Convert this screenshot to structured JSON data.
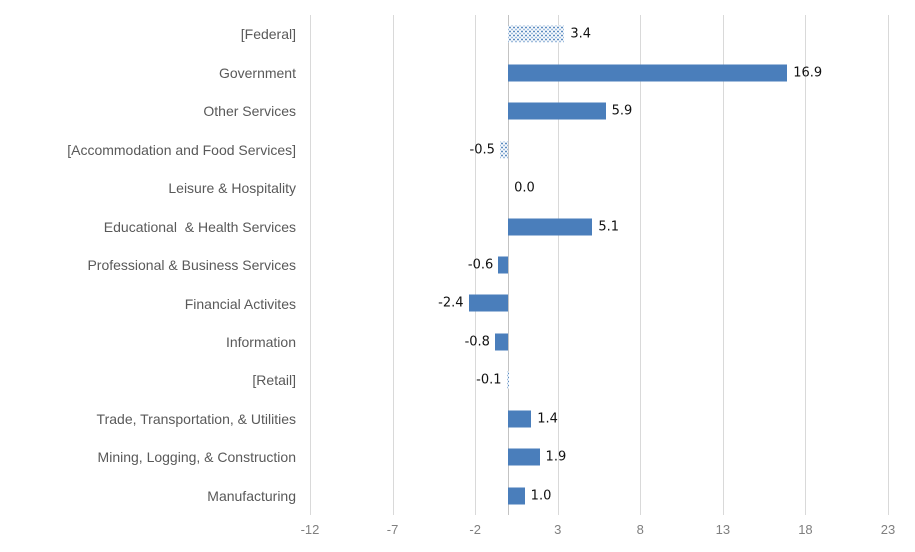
{
  "chart_data": {
    "type": "bar",
    "orientation": "horizontal",
    "categories": [
      "[Federal]",
      "Government",
      "Other Services",
      "[Accommodation and Food Services]",
      "Leisure & Hospitality",
      "Educational  & Health Services",
      "Professional & Business Services",
      "Financial Activites",
      "Information",
      "[Retail]",
      "Trade, Transportation, & Utilities",
      "Mining, Logging, & Construction",
      "Manufacturing"
    ],
    "values": [
      3.4,
      16.9,
      5.9,
      -0.5,
      0.0,
      5.1,
      -0.6,
      -2.4,
      -0.8,
      -0.1,
      1.4,
      1.9,
      1.0
    ],
    "value_labels": [
      "3.4",
      "16.9",
      "5.9",
      "-0.5",
      "0.0",
      "5.1",
      "-0.6",
      "-2.4",
      "-0.8",
      "-0.1",
      "1.4",
      "1.9",
      "1.0"
    ],
    "fill_styles": [
      "dotted",
      "solid",
      "solid",
      "dotted",
      "solid",
      "solid",
      "solid",
      "solid",
      "solid",
      "dotted",
      "solid",
      "solid",
      "solid"
    ],
    "xlabel": "",
    "ylabel": "",
    "title": "",
    "axis": {
      "min": -12,
      "max": 23,
      "ticks": [
        -12,
        -7,
        -2,
        3,
        8,
        13,
        18,
        23
      ],
      "tick_labels": [
        "-12",
        "-7",
        "-2",
        "3",
        "8",
        "13",
        "18",
        "23"
      ]
    },
    "grid": true,
    "legend_position": "none",
    "colors": {
      "bar_solid": "#4A7EBB",
      "bar_dotted_dot_dark": "#5D8CC0",
      "bar_dotted_dot_light": "#9FBDDD",
      "gridline": "#D9D9D9",
      "zero_line": "#C3C3C3",
      "category_label": "#595959",
      "axis_label": "#7F7F7F",
      "value_label": "#111111"
    }
  }
}
